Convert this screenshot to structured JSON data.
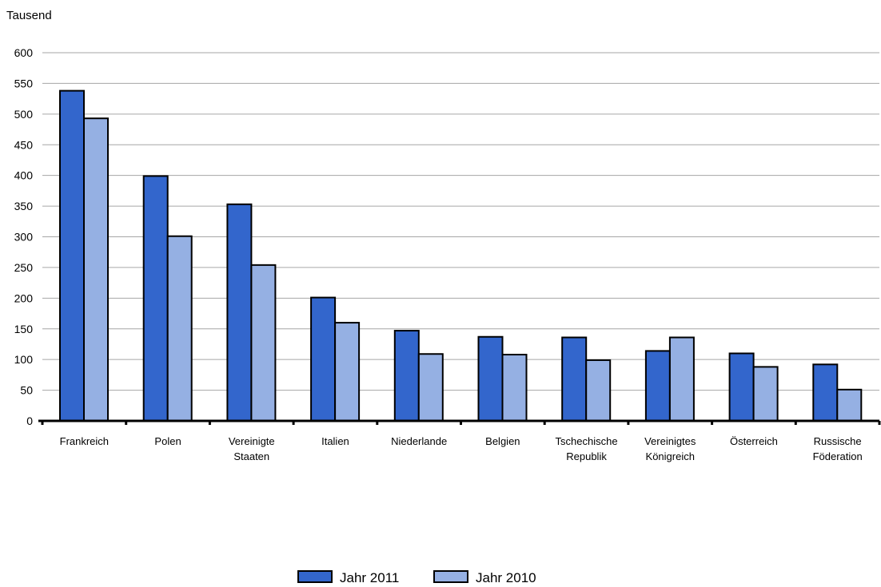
{
  "chart_data": {
    "type": "bar",
    "ylabel": "Tausend",
    "ylim": [
      0,
      600
    ],
    "yticks": [
      0,
      50,
      100,
      150,
      200,
      250,
      300,
      350,
      400,
      450,
      500,
      550,
      600
    ],
    "grid": true,
    "legend_position": "bottom-center",
    "categories": [
      [
        "Frankreich"
      ],
      [
        "Polen"
      ],
      [
        "Vereinigte",
        "Staaten"
      ],
      [
        "Italien"
      ],
      [
        "Niederlande"
      ],
      [
        "Belgien"
      ],
      [
        "Tschechische",
        "Republik"
      ],
      [
        "Vereinigtes",
        "Königreich"
      ],
      [
        "Österreich"
      ],
      [
        "Russische",
        "Föderation"
      ]
    ],
    "series": [
      {
        "name": "Jahr 2011",
        "color": "#3366cc",
        "values": [
          538,
          399,
          353,
          201,
          147,
          137,
          136,
          114,
          110,
          92
        ]
      },
      {
        "name": "Jahr 2010",
        "color": "#95b0e3",
        "values": [
          493,
          301,
          254,
          160,
          109,
          108,
          99,
          136,
          88,
          51
        ]
      }
    ]
  }
}
